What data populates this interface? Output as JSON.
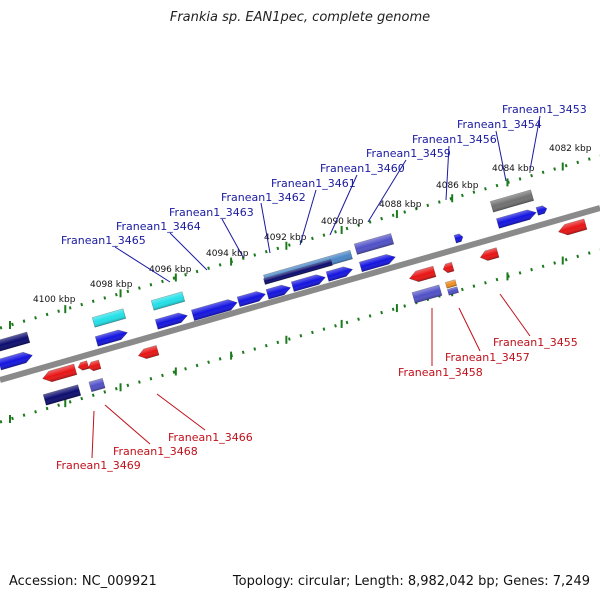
{
  "title": "Frankia sp. EAN1pec, complete genome",
  "footer": {
    "accession": "Accession: NC_009921",
    "summary": "Topology: circular; Length: 8,982,042 bp; Genes: 7,249"
  },
  "colors": {
    "backbone": "#8a8a8a",
    "tick": "#1c7a1c",
    "label_top": "#1a1aa0",
    "label_bottom": "#c0101b",
    "gene_blue": "#1414e0",
    "gene_navy": "#0c0c70",
    "gene_cyan": "#22e0e8",
    "gene_slate": "#5050c8",
    "gene_steel": "#4a86c8",
    "gene_gray": "#707070",
    "gene_red": "#e81414",
    "gene_orange": "#f08c1e"
  },
  "ruler": {
    "labels": [
      "4100 kbp",
      "4098 kbp",
      "4096 kbp",
      "4094 kbp",
      "4092 kbp",
      "4090 kbp",
      "4088 kbp",
      "4086 kbp",
      "4084 kbp",
      "4082 kbp"
    ]
  },
  "labels_top": [
    "Franean1_3465",
    "Franean1_3464",
    "Franean1_3463",
    "Franean1_3462",
    "Franean1_3461",
    "Franean1_3460",
    "Franean1_3459",
    "Franean1_3456",
    "Franean1_3454",
    "Franean1_3453"
  ],
  "labels_bottom": [
    "Franean1_3469",
    "Franean1_3468",
    "Franean1_3466",
    "Franean1_3458",
    "Franean1_3457",
    "Franean1_3455"
  ]
}
